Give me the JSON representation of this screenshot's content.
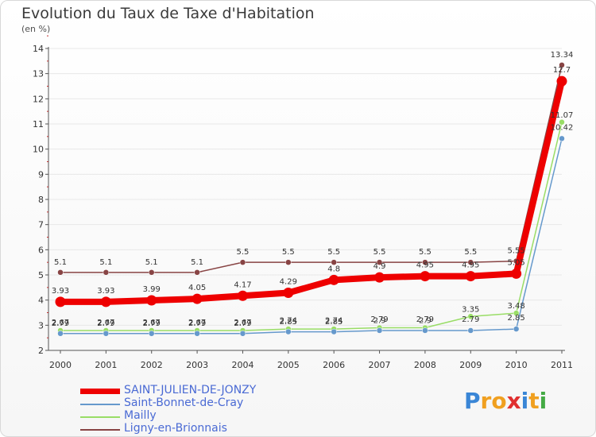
{
  "chart_data": {
    "type": "line",
    "title": "Evolution du Taux de Taxe d'Habitation",
    "subtitle": "(en %)",
    "x": [
      "2000",
      "2001",
      "2002",
      "2003",
      "2004",
      "2005",
      "2006",
      "2007",
      "2008",
      "2009",
      "2010",
      "2011"
    ],
    "ylim": [
      2,
      14
    ],
    "yticks": [
      "2",
      "3",
      "4",
      "5",
      "6",
      "7",
      "8",
      "9",
      "10",
      "11",
      "12",
      "13",
      "14"
    ],
    "series": [
      {
        "name": "SAINT-JULIEN-DE-JONZY",
        "color": "#ee0000",
        "values": [
          3.93,
          3.93,
          3.99,
          4.05,
          4.17,
          4.29,
          4.8,
          4.9,
          4.95,
          4.95,
          5.05,
          12.7
        ],
        "labels": [
          "3.93",
          "3.93",
          "3.99",
          "4.05",
          "4.17",
          "4.29",
          "4.8",
          "4.9",
          "4.95",
          "4.95",
          "5.05",
          "12.7"
        ]
      },
      {
        "name": "Saint-Bonnet-de-Cray",
        "color": "#6699cc",
        "values": [
          2.67,
          2.67,
          2.67,
          2.67,
          2.67,
          2.74,
          2.74,
          2.79,
          2.79,
          2.79,
          2.85,
          10.42
        ],
        "labels": [
          "2.67",
          "2.67",
          "2.67",
          "2.67",
          "2.67",
          "2.74",
          "2.74",
          "2.79",
          "2.79",
          "2.79",
          "2.85",
          "10.42"
        ]
      },
      {
        "name": "Mailly",
        "color": "#99dd66",
        "values": [
          2.79,
          2.79,
          2.79,
          2.79,
          2.79,
          2.85,
          2.85,
          2.9,
          2.9,
          3.35,
          3.48,
          11.07
        ],
        "labels": [
          "2.79",
          "2.79",
          "2.79",
          "2.79",
          "2.79",
          "2.85",
          "2.85",
          "2.9",
          "2.9",
          "3.35",
          "3.48",
          "11.07"
        ]
      },
      {
        "name": "Ligny-en-Brionnais",
        "color": "#884444",
        "values": [
          5.1,
          5.1,
          5.1,
          5.1,
          5.5,
          5.5,
          5.5,
          5.5,
          5.5,
          5.5,
          5.55,
          13.34
        ],
        "labels": [
          "5.1",
          "5.1",
          "5.1",
          "5.1",
          "5.5",
          "5.5",
          "5.5",
          "5.5",
          "5.5",
          "5.5",
          "5.55",
          "13.34"
        ]
      }
    ],
    "legend_position": "bottom-left"
  },
  "brand": {
    "text": "Proxiti",
    "letters": [
      "P",
      "r",
      "o",
      "x",
      "i",
      "t",
      "i"
    ]
  }
}
